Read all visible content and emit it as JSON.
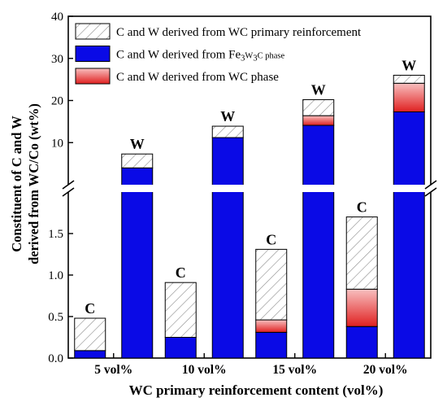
{
  "chart_data": {
    "type": "bar",
    "stacked": true,
    "broken_y_axis": true,
    "ylabel_line1": "Constituent of C and W",
    "ylabel_line2": "derived from WC/Co (wt%)",
    "xlabel": "WC primary reinforcement content (vol%)",
    "categories": [
      "5 vol%",
      "10 vol%",
      "15 vol%",
      "20 vol%"
    ],
    "bar_labels": [
      "C",
      "W"
    ],
    "lower_axis": {
      "ylim": [
        0,
        2.0
      ],
      "ticks": [
        "0.0",
        "0.5",
        "1.0",
        "1.5"
      ]
    },
    "upper_axis": {
      "ylim": [
        0,
        40
      ],
      "ticks": [
        "10",
        "20",
        "30",
        "40"
      ]
    },
    "legend": {
      "position": "top-left",
      "items": [
        {
          "key": "primary",
          "label_pre": "C and W derived from WC primary reinforcement",
          "sub1": "",
          "mid": "",
          "sub2": "",
          "post": ""
        },
        {
          "key": "fe3w3c",
          "label_pre": "C and W derived from Fe",
          "sub1": "3",
          "mid": "W",
          "sub2": "3",
          "post": "C phase"
        },
        {
          "key": "wc",
          "label_pre": "C and W derived from WC phase",
          "sub1": "",
          "mid": "",
          "sub2": "",
          "post": ""
        }
      ]
    },
    "series": [
      {
        "name": "C and W derived from WC primary reinforcement",
        "key": "primary",
        "C": [
          0.39,
          0.66,
          0.85,
          0.87
        ],
        "W": [
          3.3,
          2.7,
          3.8,
          1.9
        ]
      },
      {
        "name": "C and W derived from Fe3W3C phase",
        "key": "fe3w3c",
        "C": [
          0.09,
          0.25,
          0.31,
          0.38
        ],
        "W": [
          4.0,
          11.2,
          14.1,
          17.3
        ]
      },
      {
        "name": "C and W derived from WC phase",
        "key": "wc",
        "C": [
          0.0,
          0.0,
          0.15,
          0.45
        ],
        "W": [
          0.0,
          0.0,
          2.3,
          6.8
        ]
      }
    ],
    "colors": {
      "primary": "#ffffff",
      "fe3w3c": "#0a0ae6",
      "wc_dark": "#e02020",
      "wc_light": "#f8c0c0",
      "hatch": "#8c8c8c"
    }
  }
}
